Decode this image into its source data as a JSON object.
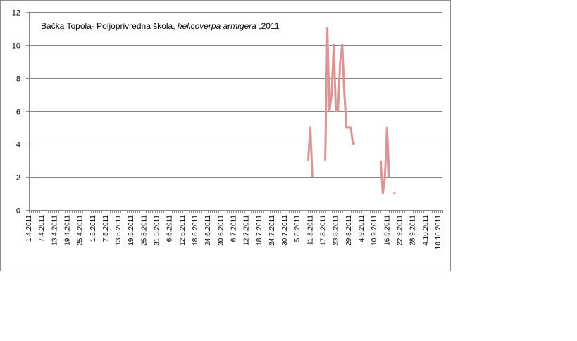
{
  "chart_data": {
    "type": "line",
    "title_plain": "Bačka Topola- Poljoprivredna škola, ",
    "title_italic": "helicoverpa armigera",
    "title_suffix": " ,2011",
    "xlabel": "",
    "ylabel": "",
    "ylim": [
      0,
      12
    ],
    "yticks": [
      0,
      2,
      4,
      6,
      8,
      10,
      12
    ],
    "x_start": "1.4.2011",
    "x_end": "12.10.2011",
    "xtick_labels": [
      "1.4.2011",
      "7.4.2011",
      "13.4.2011",
      "19.4.2011",
      "25.4.2011",
      "1.5.2011",
      "7.5.2011",
      "13.5.2011",
      "19.5.2011",
      "25.5.2011",
      "31.5.2011",
      "6.6.2011",
      "12.6.2011",
      "18.6.2011",
      "24.6.2011",
      "30.6.2011",
      "6.7.2011",
      "12.7.2011",
      "18.7.2011",
      "24.7.2011",
      "30.7.2011",
      "5.8.2011",
      "11.8.2011",
      "17.8.2011",
      "23.8.2011",
      "29.8.2011",
      "4.9.2011",
      "10.9.2011",
      "16.9.2011",
      "22.9.2011",
      "28.9.2011",
      "4.10.2011",
      "10.10.2011"
    ],
    "grid": true,
    "line_color": "#d99694",
    "series": [
      {
        "points": [
          {
            "x": "10.8.2011",
            "y": 3
          },
          {
            "x": "11.8.2011",
            "y": 5
          },
          {
            "x": "12.8.2011",
            "y": 2
          },
          {
            "x": null,
            "y": null
          },
          {
            "x": "18.8.2011",
            "y": 3
          },
          {
            "x": "19.8.2011",
            "y": 11
          },
          {
            "x": "20.8.2011",
            "y": 6
          },
          {
            "x": "21.8.2011",
            "y": 7
          },
          {
            "x": "22.8.2011",
            "y": 10
          },
          {
            "x": "23.8.2011",
            "y": 6
          },
          {
            "x": "24.8.2011",
            "y": 6
          },
          {
            "x": "25.8.2011",
            "y": 9
          },
          {
            "x": "26.8.2011",
            "y": 10
          },
          {
            "x": "27.8.2011",
            "y": 7
          },
          {
            "x": "28.8.2011",
            "y": 5
          },
          {
            "x": "30.8.2011",
            "y": 5
          },
          {
            "x": "31.8.2011",
            "y": 4
          },
          {
            "x": "1.9.2011",
            "y": 4
          },
          {
            "x": null,
            "y": null
          },
          {
            "x": "13.9.2011",
            "y": 3
          },
          {
            "x": "14.9.2011",
            "y": 1
          },
          {
            "x": "15.9.2011",
            "y": 2
          },
          {
            "x": "16.9.2011",
            "y": 5
          },
          {
            "x": "17.9.2011",
            "y": 2
          },
          {
            "x": null,
            "y": null
          },
          {
            "x": "19.9.2011",
            "y": 1
          },
          {
            "x": "20.9.2011",
            "y": 1
          }
        ]
      }
    ]
  }
}
